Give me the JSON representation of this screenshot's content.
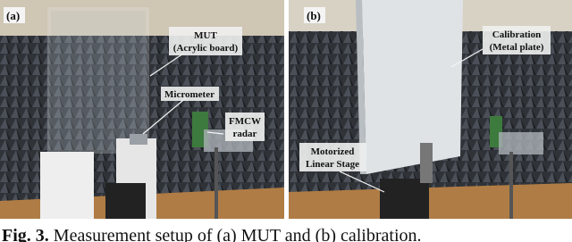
{
  "panels": [
    {
      "label": "(a)",
      "annotations": [
        {
          "lines": [
            "MUT",
            "(Acrylic board)"
          ]
        },
        {
          "lines": [
            "Micrometer"
          ]
        },
        {
          "lines": [
            "FMCW",
            "radar"
          ]
        }
      ]
    },
    {
      "label": "(b)",
      "annotations": [
        {
          "lines": [
            "Calibration",
            "(Metal plate)"
          ]
        },
        {
          "lines": [
            "Motorized",
            "Linear Stage"
          ]
        }
      ]
    }
  ],
  "caption": {
    "number": "Fig. 3.",
    "text": "Measurement setup of (a) MUT and (b) calibration."
  }
}
